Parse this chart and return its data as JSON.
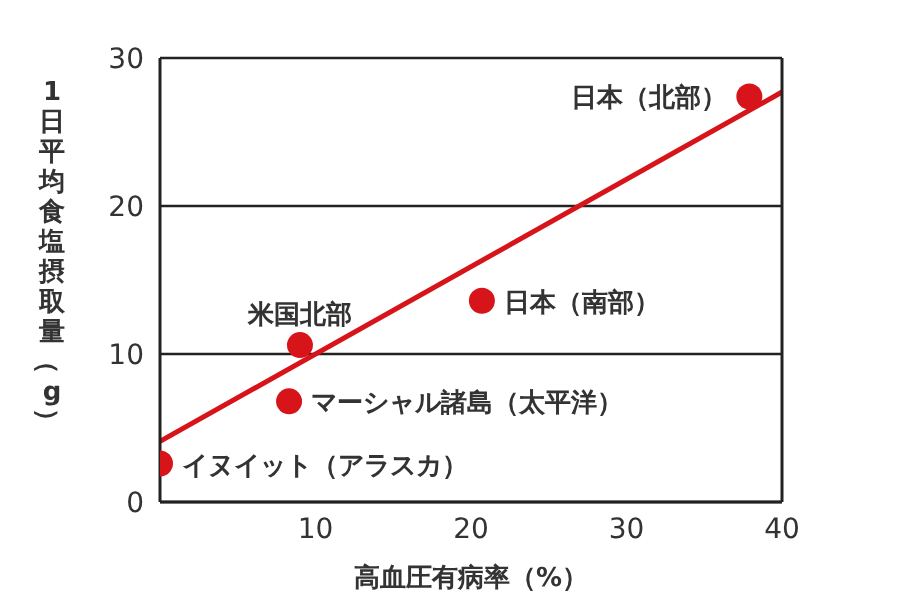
{
  "chart_data": {
    "type": "scatter",
    "xlabel": "高血圧有病率（%）",
    "ylabel": "1日平均食塩摂取量（g）",
    "xlim": [
      0,
      40
    ],
    "xticks": [
      10,
      20,
      30,
      40
    ],
    "ylim": [
      0,
      30
    ],
    "yticks": [
      0,
      10,
      20,
      30
    ],
    "grid": "y",
    "series": [
      {
        "marker": "circle",
        "color": "#d7141a",
        "x": [
          0,
          8.3,
          9,
          20.7,
          37.9
        ],
        "values": [
          2.6,
          6.8,
          10.6,
          13.6,
          27.4
        ]
      },
      {
        "type": "line",
        "marker": "none",
        "color": "#d7141a",
        "x": [
          0,
          40
        ],
        "values": [
          4.1,
          27.7
        ]
      }
    ],
    "annotations": [
      {
        "text": "イヌイット（アラスカ）",
        "x": 0,
        "y": 2.6
      },
      {
        "text": "マーシャル諸島（太平洋）",
        "x": 8.3,
        "y": 6.8
      },
      {
        "text": "米国北部",
        "x": 9,
        "y": 10.6
      },
      {
        "text": "日本（南部）",
        "x": 20.7,
        "y": 13.6
      },
      {
        "text": "日本（北部）",
        "x": 37.9,
        "y": 27.4
      }
    ]
  }
}
